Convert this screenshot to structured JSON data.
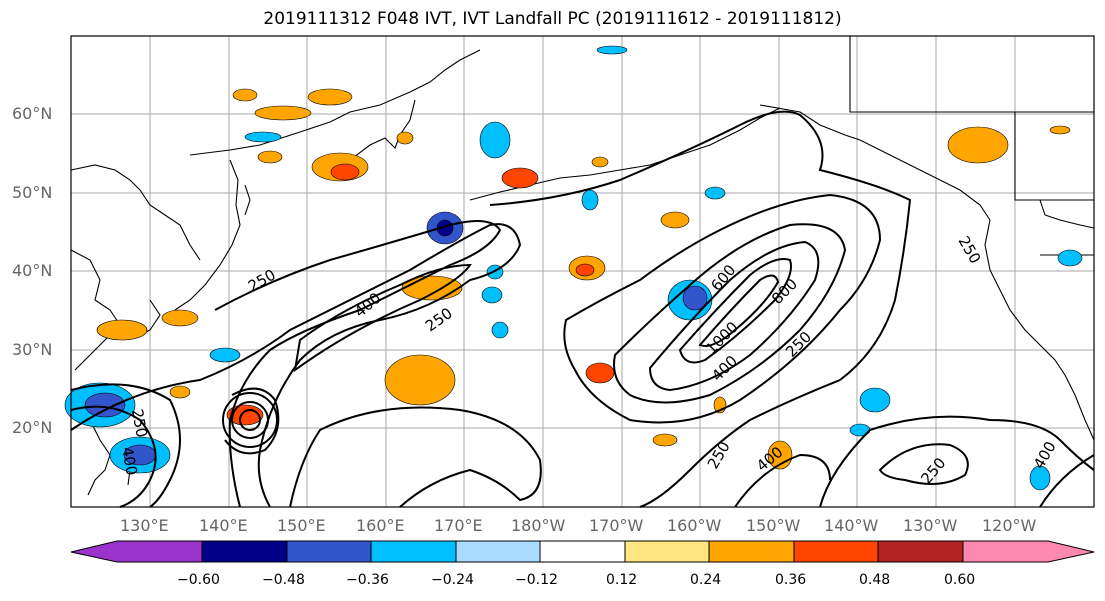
{
  "title": "2019111312 F048 IVT, IVT Landfall PC (2019111612 - 2019111812)",
  "lat_labels": [
    "60°N",
    "50°N",
    "40°N",
    "30°N",
    "20°N"
  ],
  "lon_labels": [
    "130°E",
    "140°E",
    "150°E",
    "160°E",
    "170°E",
    "180°W",
    "170°W",
    "160°W",
    "150°W",
    "140°W",
    "130°W",
    "120°W"
  ],
  "contour_labels": [
    "250",
    "400",
    "600",
    "800",
    "1000"
  ],
  "colorbar": {
    "labels": [
      "−0.60",
      "−0.48",
      "−0.36",
      "−0.24",
      "−0.12",
      "0.12",
      "0.24",
      "0.36",
      "0.48",
      "0.60"
    ],
    "colors": [
      "#9933cc",
      "#000088",
      "#3355cc",
      "#00bfff",
      "#aadcff",
      "#ffffff",
      "#ffe680",
      "#ffa500",
      "#ff4500",
      "#b22222",
      "#ff88b0"
    ]
  },
  "colors": {
    "contour": "#000000",
    "grid": "#aaaaaa",
    "coast": "#000000"
  }
}
